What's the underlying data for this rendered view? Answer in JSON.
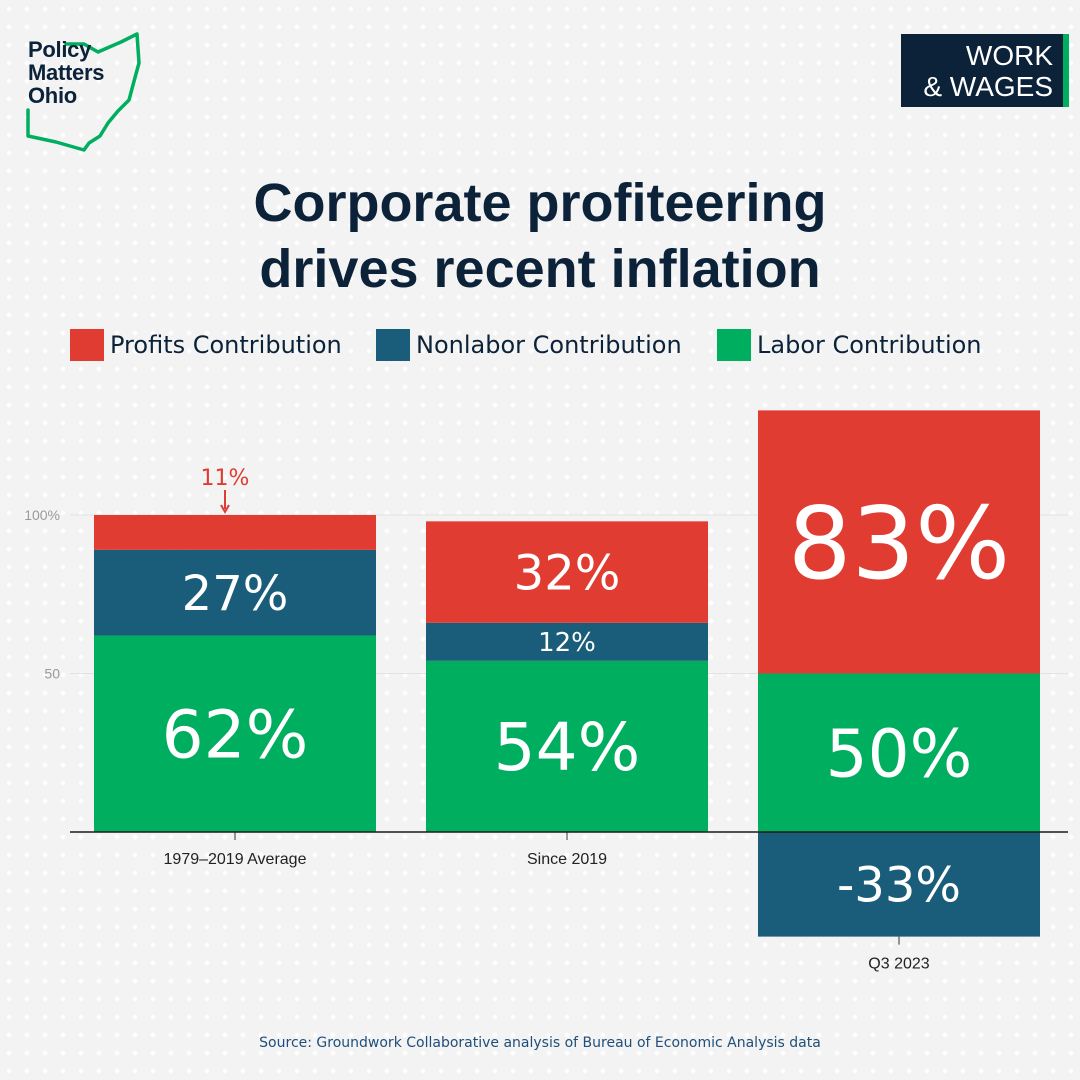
{
  "brand": {
    "logo_lines": [
      "Policy",
      "Matters",
      "Ohio"
    ],
    "logo_color": "#0c2238",
    "outline_color": "#00ae5f"
  },
  "badge": {
    "line1": "WORK",
    "line2": "& WAGES",
    "bg": "#0c2238",
    "accent": "#00ae5f"
  },
  "colors": {
    "profits": "#e03c31",
    "nonlabor": "#1a5d7a",
    "labor": "#00ae5f",
    "text_dark": "#0c2238"
  },
  "chart_data": {
    "type": "bar",
    "stacked": true,
    "title_lines": [
      "Corporate profiteering",
      "drives recent inflation"
    ],
    "categories": [
      "1979–2019 Average",
      "Since 2019",
      "Q3 2023"
    ],
    "series": [
      {
        "name": "Labor Contribution",
        "values": [
          62,
          54,
          50
        ],
        "labels": [
          "62%",
          "54%",
          "50%"
        ],
        "color": "#00ae5f"
      },
      {
        "name": "Nonlabor Contribution",
        "values": [
          27,
          12,
          -33
        ],
        "labels": [
          "27%",
          "12%",
          "-33%"
        ],
        "color": "#1a5d7a"
      },
      {
        "name": "Profits Contribution",
        "values": [
          11,
          32,
          83
        ],
        "labels": [
          "11%",
          "32%",
          "83%"
        ],
        "color": "#e03c31"
      }
    ],
    "legend_order": [
      "Profits Contribution",
      "Nonlabor Contribution",
      "Labor Contribution"
    ],
    "legend_position": "top",
    "yticks": [
      50,
      100
    ],
    "ytick_labels": [
      "50",
      "100%"
    ],
    "ylim": [
      -33,
      133
    ],
    "grid": true,
    "callout": {
      "category": "1979–2019 Average",
      "series": "Profits Contribution",
      "text": "11%"
    }
  },
  "source": "Source: Groundwork Collaborative analysis of Bureau of Economic Analysis data"
}
